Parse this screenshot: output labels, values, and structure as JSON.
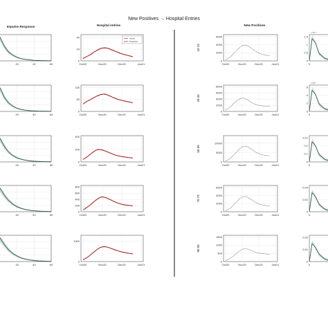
{
  "figure": {
    "title": "New Positives → Hospital Entries",
    "col_heads": [
      "Impulse Response",
      "Hospital entries",
      "New Positives"
    ],
    "legend": [
      "Actual",
      "Predicted"
    ],
    "colors": {
      "actual": "#222222",
      "predicted": "#d42a2a",
      "irf": "#2f5e4f",
      "band": "#b9cfc6",
      "grid": "#e2e2e2"
    },
    "age_groups": [
      "10-19",
      "30-39",
      "50-59",
      "70-79",
      "90-99"
    ]
  },
  "chart_data": [
    {
      "id": "irf-left",
      "type": "line",
      "title": "Impulse Response",
      "x_ticks": [
        "20",
        "40",
        "60"
      ],
      "xlim": [
        0,
        60
      ],
      "panels": [
        {
          "y": [
            1.0,
            0.62,
            0.38,
            0.24,
            0.15,
            0.09,
            0.06,
            0.04,
            0.02,
            0.015,
            0.01,
            0.006,
            0.004
          ]
        },
        {
          "y": [
            1.0,
            0.6,
            0.36,
            0.22,
            0.13,
            0.08,
            0.05,
            0.03,
            0.02,
            0.012,
            0.008,
            0.005,
            0.003
          ]
        },
        {
          "y": [
            1.0,
            0.66,
            0.42,
            0.27,
            0.17,
            0.11,
            0.07,
            0.045,
            0.03,
            0.02,
            0.012,
            0.008,
            0.005
          ]
        },
        {
          "y": [
            1.0,
            0.7,
            0.48,
            0.32,
            0.21,
            0.14,
            0.09,
            0.06,
            0.04,
            0.026,
            0.017,
            0.011,
            0.007
          ]
        },
        {
          "y": [
            1.0,
            0.72,
            0.5,
            0.34,
            0.23,
            0.15,
            0.1,
            0.066,
            0.044,
            0.03,
            0.02,
            0.013,
            0.009
          ]
        }
      ]
    },
    {
      "id": "hospital-entries",
      "type": "line",
      "title": "Hospital entries",
      "x_ticks": [
        "Oct20",
        "Nov20",
        "Dec20",
        "Jan21"
      ],
      "panels": [
        {
          "y_ticks": [
            "0",
            "20",
            "40"
          ],
          "ylim": [
            0,
            45
          ],
          "actual": [
            4,
            6,
            8,
            10,
            13,
            15,
            17,
            20,
            21,
            22,
            23,
            22,
            21,
            20,
            18,
            16,
            15,
            14,
            12,
            11,
            10,
            9,
            8,
            7
          ],
          "predicted": [
            4,
            6,
            8,
            10,
            12,
            15,
            17,
            19,
            21,
            22,
            22,
            22,
            21,
            19,
            18,
            16,
            15,
            13,
            12,
            11,
            10,
            9,
            8,
            7
          ]
        },
        {
          "y_ticks": [
            "0",
            "50",
            "100"
          ],
          "ylim": [
            0,
            110
          ],
          "actual": [
            30,
            38,
            42,
            48,
            52,
            58,
            62,
            68,
            70,
            72,
            74,
            70,
            66,
            62,
            58,
            54,
            50,
            48,
            46,
            44,
            42,
            40,
            38,
            35
          ],
          "predicted": [
            31,
            37,
            43,
            47,
            53,
            57,
            63,
            66,
            70,
            72,
            72,
            70,
            66,
            62,
            58,
            54,
            51,
            48,
            46,
            44,
            42,
            40,
            38,
            36
          ]
        },
        {
          "y_ticks": [
            "0",
            "200",
            "400"
          ],
          "ylim": [
            0,
            420
          ],
          "actual": [
            40,
            60,
            85,
            110,
            140,
            165,
            190,
            200,
            198,
            190,
            178,
            165,
            150,
            135,
            120,
            108,
            100,
            92,
            85,
            80,
            75,
            70,
            65,
            62
          ],
          "predicted": [
            40,
            62,
            86,
            112,
            140,
            166,
            188,
            198,
            196,
            190,
            178,
            164,
            150,
            135,
            121,
            109,
            100,
            92,
            85,
            80,
            75,
            70,
            66,
            62
          ]
        },
        {
          "y_ticks": [
            "0",
            "200",
            "400",
            "600",
            "800"
          ],
          "ylim": [
            0,
            850
          ],
          "actual": [
            60,
            100,
            150,
            200,
            260,
            320,
            380,
            430,
            470,
            480,
            470,
            440,
            410,
            380,
            340,
            310,
            280,
            260,
            240,
            225,
            215,
            205,
            200,
            190
          ],
          "predicted": [
            62,
            100,
            152,
            202,
            262,
            322,
            378,
            428,
            466,
            478,
            468,
            440,
            410,
            378,
            342,
            310,
            282,
            260,
            240,
            226,
            215,
            205,
            198,
            190
          ]
        },
        {
          "y_ticks": [
            "0",
            "1000"
          ],
          "ylim": [
            0,
            1300
          ],
          "actual": [
            90,
            140,
            210,
            290,
            380,
            470,
            560,
            640,
            700,
            730,
            740,
            720,
            690,
            650,
            610,
            570,
            530,
            500,
            470,
            450,
            430,
            410,
            395,
            380
          ],
          "predicted": [
            92,
            142,
            212,
            292,
            380,
            470,
            558,
            638,
            698,
            728,
            738,
            718,
            688,
            650,
            610,
            570,
            532,
            500,
            472,
            450,
            430,
            410,
            395,
            380
          ]
        }
      ]
    },
    {
      "id": "new-positives",
      "type": "line",
      "title": "New Positives",
      "x_ticks": [
        "Oct20",
        "Nov20",
        "Dec20",
        "Jan21"
      ],
      "panels": [
        {
          "age": "10-19",
          "y_ticks": [
            "0",
            "2000",
            "4000",
            "6000"
          ],
          "ylim": [
            0,
            6500
          ],
          "y": [
            300,
            500,
            800,
            1200,
            1700,
            2200,
            2700,
            3200,
            3600,
            3800,
            3900,
            3800,
            3600,
            3300,
            2900,
            2600,
            2300,
            2000,
            1800,
            1600,
            1500,
            1400,
            1350,
            1300
          ]
        },
        {
          "age": "30-39",
          "y_ticks": [
            "0",
            "2000",
            "4000",
            "6000",
            "8000"
          ],
          "ylim": [
            0,
            8500
          ],
          "y": [
            500,
            800,
            1200,
            1800,
            2400,
            3000,
            3500,
            3900,
            4200,
            4300,
            4200,
            3900,
            3500,
            3100,
            2700,
            2400,
            2200,
            2000,
            1900,
            1800,
            1750,
            1700,
            1650,
            1600
          ]
        },
        {
          "age": "50-59",
          "y_ticks": [
            "0",
            "5000",
            "10000"
          ],
          "ylim": [
            0,
            14000
          ],
          "y": [
            600,
            1000,
            1600,
            2400,
            3400,
            4500,
            5600,
            6700,
            7600,
            8200,
            8400,
            8200,
            7700,
            7000,
            6300,
            5600,
            5000,
            4500,
            4100,
            3800,
            3600,
            3400,
            3300,
            3200
          ]
        },
        {
          "age": "70-79",
          "y_ticks": [
            "0",
            "2000",
            "4000",
            "6000"
          ],
          "ylim": [
            0,
            6500
          ],
          "y": [
            200,
            400,
            700,
            1100,
            1600,
            2100,
            2600,
            3100,
            3500,
            3700,
            3800,
            3700,
            3400,
            3100,
            2800,
            2500,
            2200,
            2000,
            1800,
            1700,
            1600,
            1500,
            1450,
            1400
          ]
        },
        {
          "age": "90-99",
          "y_ticks": [
            "0",
            "500",
            "1000",
            "1500"
          ],
          "ylim": [
            0,
            1600
          ],
          "y": [
            60,
            100,
            160,
            240,
            330,
            430,
            530,
            620,
            700,
            760,
            790,
            780,
            740,
            690,
            640,
            590,
            550,
            520,
            500,
            480,
            470,
            460,
            450,
            440
          ]
        }
      ]
    },
    {
      "id": "irf-right",
      "type": "line",
      "title": "",
      "panels": [
        {
          "y_ticks": [
            "0",
            "0.5",
            "1",
            "1.5"
          ],
          "exp": "× 10⁻³",
          "x_ticks": [
            "0"
          ]
        },
        {
          "y_ticks": [
            "0",
            "2",
            "4",
            "6"
          ],
          "exp": "× 10⁻³",
          "x_ticks": [
            "0"
          ]
        },
        {
          "y_ticks": [
            "0",
            "0.1",
            "0.2",
            "0.21"
          ],
          "exp": "",
          "x_ticks": [
            "0"
          ]
        },
        {
          "y_ticks": [
            "0",
            "0.02",
            "0.04"
          ],
          "exp": "",
          "x_ticks": [
            "0"
          ]
        },
        {
          "y_ticks": [
            "0",
            "0.01",
            "0.02"
          ],
          "exp": "",
          "x_ticks": [
            "0"
          ]
        }
      ]
    }
  ]
}
